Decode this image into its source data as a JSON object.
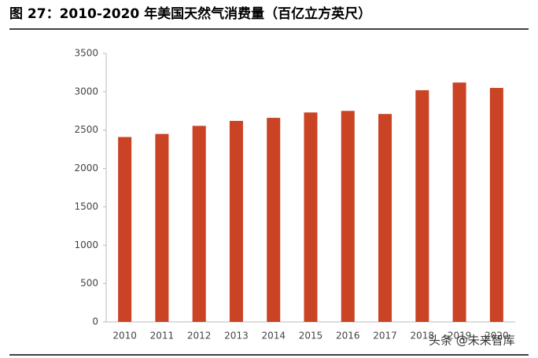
{
  "chart_data": {
    "type": "bar",
    "title": "图 27：2010-2020 年美国天然气消费量（百亿立方英尺）",
    "categories": [
      "2010",
      "2011",
      "2012",
      "2013",
      "2014",
      "2015",
      "2016",
      "2017",
      "2018",
      "2019",
      "2020"
    ],
    "values": [
      2410,
      2450,
      2555,
      2620,
      2660,
      2730,
      2750,
      2710,
      3020,
      3120,
      3050
    ],
    "color": "#c94324",
    "ylim": [
      0,
      3500
    ],
    "yticks": [
      0,
      500,
      1000,
      1500,
      2000,
      2500,
      3000,
      3500
    ],
    "grid": false,
    "watermark": "头条 @未来智库"
  }
}
